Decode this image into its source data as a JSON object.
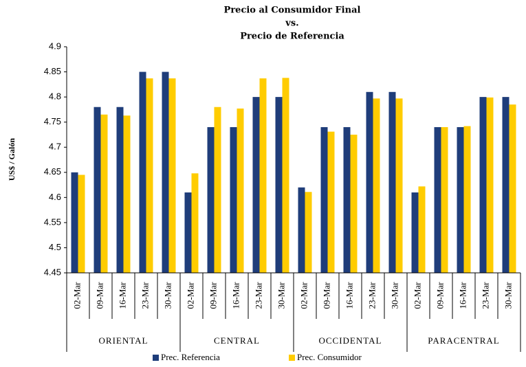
{
  "chart_data": {
    "type": "bar",
    "title": [
      "Precio al Consumidor Final",
      "vs.",
      "Precio de Referencia"
    ],
    "y_label": "US$ / Galón",
    "categories": [
      "02-Mar",
      "09-Mar",
      "16-Mar",
      "23-Mar",
      "30-Mar",
      "02-Mar",
      "09-Mar",
      "16-Mar",
      "23-Mar",
      "30-Mar",
      "02-Mar",
      "09-Mar",
      "16-Mar",
      "23-Mar",
      "30-Mar",
      "02-Mar",
      "09-Mar",
      "16-Mar",
      "23-Mar",
      "30-Mar"
    ],
    "groups": [
      "ORIENTAL",
      "CENTRAL",
      "OCCIDENTAL",
      "PARACENTRAL"
    ],
    "series": [
      {
        "name": "Prec. Referencia",
        "color": "#1f3d7a",
        "values": [
          4.65,
          4.78,
          4.78,
          4.85,
          4.85,
          4.61,
          4.74,
          4.74,
          4.8,
          4.8,
          4.62,
          4.74,
          4.74,
          4.81,
          4.81,
          4.61,
          4.74,
          4.74,
          4.8,
          4.8
        ]
      },
      {
        "name": "Prec. Consumidor",
        "color": "#ffcc00",
        "values": [
          4.645,
          4.765,
          4.763,
          4.837,
          4.837,
          4.648,
          4.78,
          4.777,
          4.837,
          4.838,
          4.611,
          4.731,
          4.725,
          4.797,
          4.797,
          4.622,
          4.74,
          4.742,
          4.799,
          4.785
        ]
      }
    ],
    "ylim": [
      4.45,
      4.9
    ],
    "yticks": [
      4.45,
      4.5,
      4.55,
      4.6,
      4.65,
      4.7,
      4.75,
      4.8,
      4.85,
      4.9
    ],
    "grid": false
  }
}
